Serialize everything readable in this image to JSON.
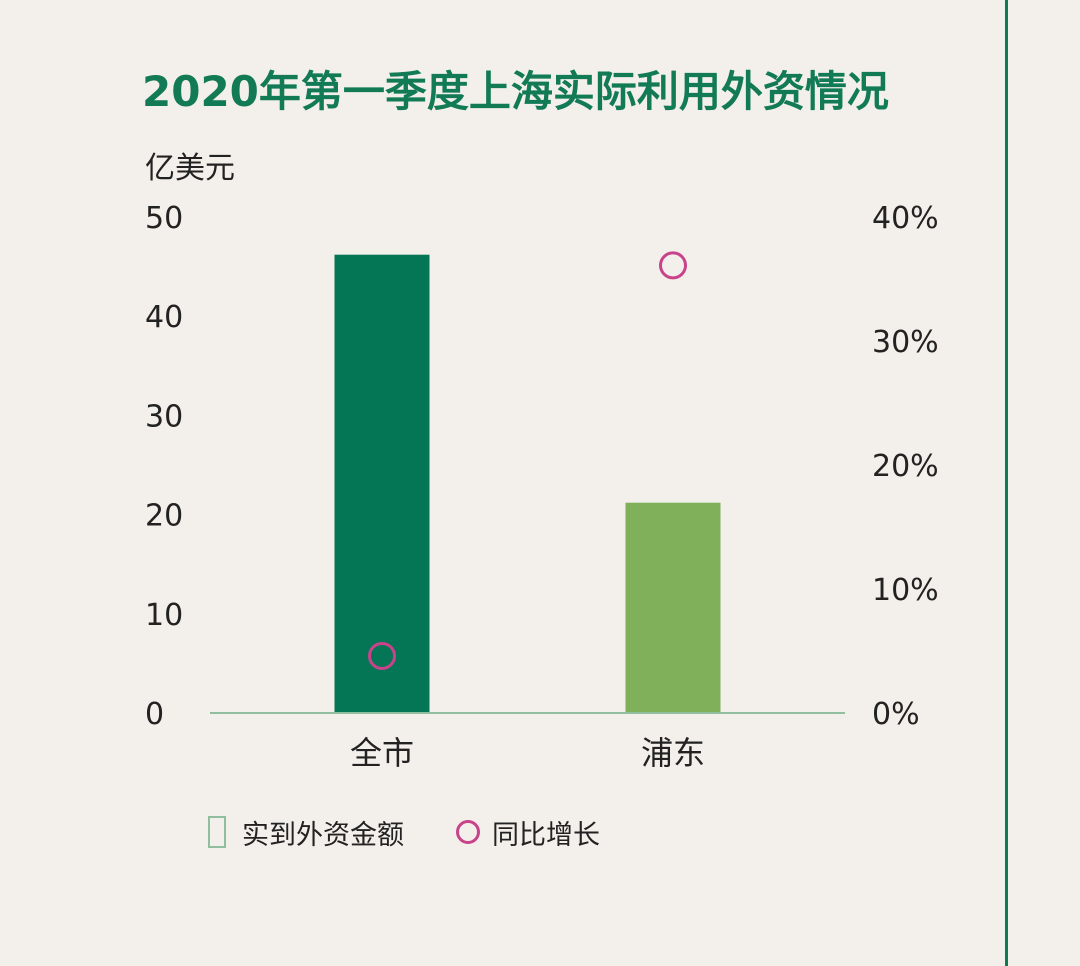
{
  "chart_data": {
    "type": "bar",
    "title": "2020年第一季度上海实际利用外资情况",
    "categories": [
      "全市",
      "浦东"
    ],
    "y_left": {
      "label": "亿美元",
      "ylim": [
        0,
        50
      ],
      "ticks": [
        "0",
        "10",
        "20",
        "30",
        "40",
        "50"
      ]
    },
    "y_right": {
      "ylim": [
        0,
        40
      ],
      "ticks": [
        "0%",
        "10%",
        "20%",
        "30%",
        "40%"
      ]
    },
    "series": [
      {
        "name": "实到外资金额",
        "kind": "bar",
        "axis": "left",
        "values": [
          46.2,
          21.2
        ],
        "colors": [
          "#047656",
          "#80b15a"
        ]
      },
      {
        "name": "同比增长",
        "kind": "scatter",
        "axis": "right",
        "values": [
          4.6,
          36.1
        ],
        "color": "#c9438a"
      }
    ],
    "grid": false,
    "legend_position": "bottom-left"
  },
  "colors": {
    "background": "#f3f0eb",
    "title": "#127a55",
    "axis_line": "#8fbf9f",
    "accent_rule": "#0f7a55"
  }
}
